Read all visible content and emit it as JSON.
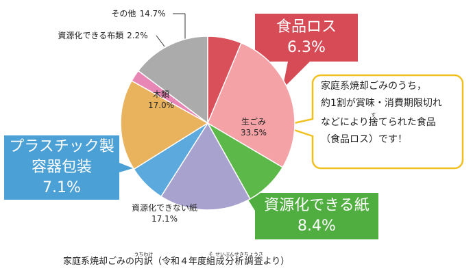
{
  "chart_data": {
    "type": "pie",
    "categories": [
      "生ごみ",
      "資源化できる紙",
      "資源化できない紙",
      "プラスチック製容器包装",
      "木類",
      "資源化できる布類",
      "その他"
    ],
    "values": [
      33.5,
      8.4,
      17.1,
      7.1,
      17.0,
      2.2,
      14.7
    ],
    "value_labels": [
      "33.5%",
      "8.4%",
      "17.1%",
      "7.1%",
      "17.0%",
      "2.2%",
      "14.7%"
    ],
    "colors": [
      "#f4a2a6",
      "#5cb848",
      "#a8a2ce",
      "#5ba9dd",
      "#e9b35e",
      "#e887b6",
      "#ababab"
    ],
    "sub_slice": {
      "name": "食品ロス",
      "value": 6.3,
      "value_label": "6.3%",
      "color": "#d9505a"
    }
  },
  "bubble": {
    "lines": [
      [
        {
          "text": "家庭系焼却ごみのうち，"
        }
      ],
      [
        {
          "text": "約1割が賞味・消費期限切れ"
        }
      ],
      [
        {
          "text": "などにより"
        },
        {
          "text": "捨",
          "ruby": "す"
        },
        {
          "text": "てられた食品"
        }
      ],
      [
        {
          "text": "（食品ロス）です！"
        }
      ]
    ]
  },
  "footnote": [
    {
      "text": "家庭系焼却ごみの"
    },
    {
      "text": "内訳",
      "ruby": "うちわけ"
    },
    {
      "text": "（令和４年度"
    },
    {
      "text": "組",
      "ruby": "そ"
    },
    {
      "text": "成分析調査",
      "ruby": "せいぶんせきちょうさ"
    },
    {
      "text": "より）"
    }
  ]
}
